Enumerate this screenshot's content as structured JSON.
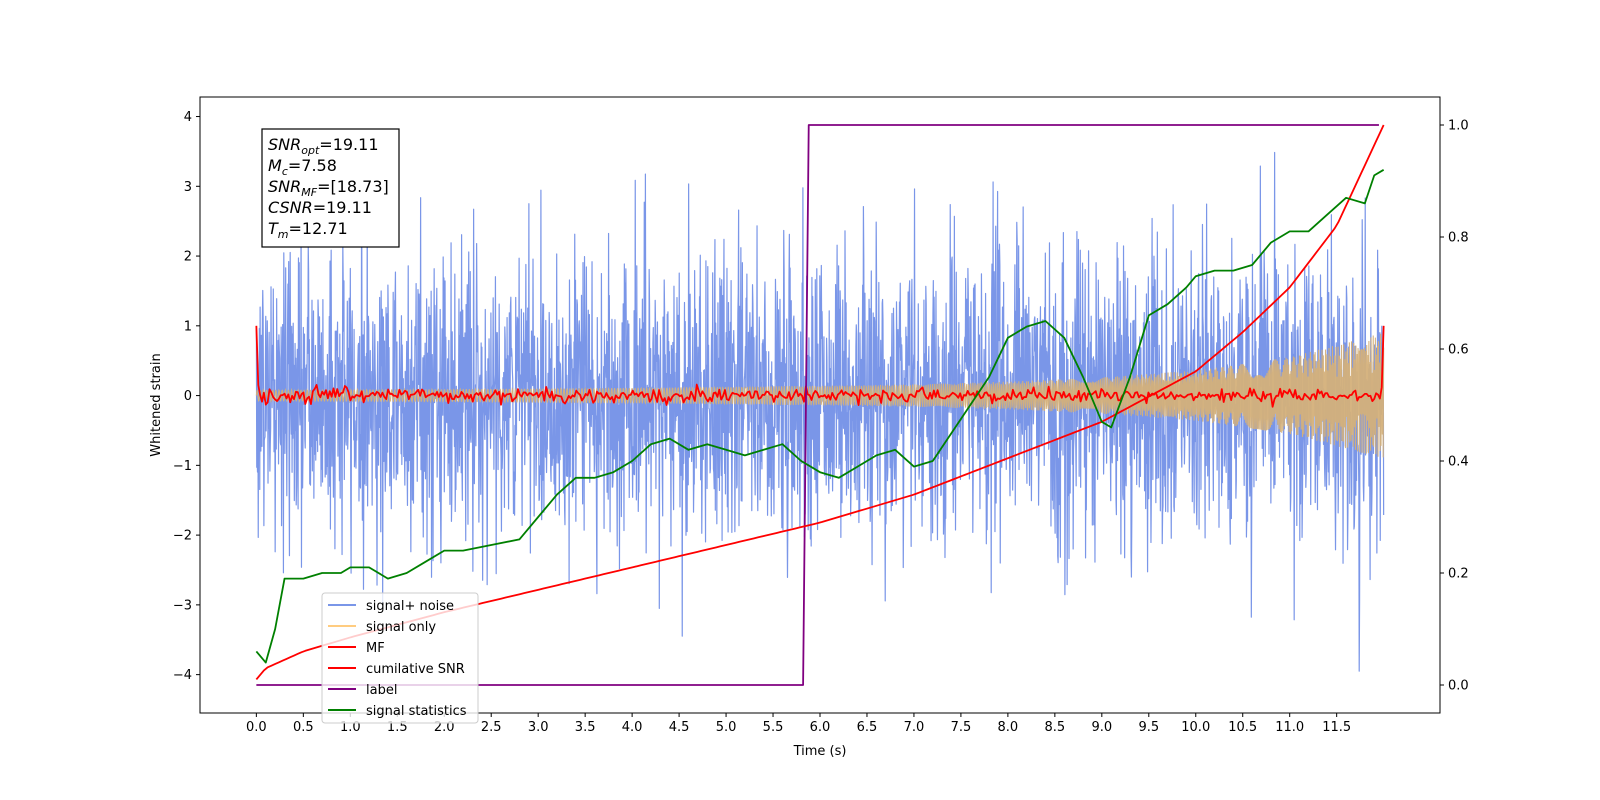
{
  "chart_data": {
    "type": "line",
    "xlabel": "Time (s)",
    "ylabel": "Whitened strain",
    "ylabel_right": "",
    "xlim": [
      -0.6,
      12.6
    ],
    "ylim": [
      -4.55,
      4.28
    ],
    "ylim_right": [
      -0.05,
      1.05
    ],
    "x_ticks": [
      "0.0",
      "0.5",
      "1.0",
      "1.5",
      "2.0",
      "2.5",
      "3.0",
      "3.5",
      "4.0",
      "4.5",
      "5.0",
      "5.5",
      "6.0",
      "6.5",
      "7.0",
      "7.5",
      "8.0",
      "8.5",
      "9.0",
      "9.5",
      "10.0",
      "10.5",
      "11.0",
      "11.5"
    ],
    "y_ticks": [
      "4",
      "3",
      "2",
      "1",
      "0",
      "−1",
      "−2",
      "−3",
      "−4"
    ],
    "y_ticks_right": [
      "1.0",
      "0.8",
      "0.6",
      "0.4",
      "0.2",
      "0.0"
    ],
    "duration_s": 12.0,
    "grid": false,
    "legend": {
      "placement": "lower-left",
      "entries": [
        {
          "label": "signal+ noise",
          "color": "#7a96e8"
        },
        {
          "label": "signal only",
          "color": "#ffcc80"
        },
        {
          "label": "MF",
          "color": "#ff0000"
        },
        {
          "label": "cumilative SNR",
          "color": "#ff0000"
        },
        {
          "label": "label",
          "color": "#800080"
        },
        {
          "label": "signal statistics",
          "color": "#008000"
        }
      ]
    },
    "annotation": {
      "lines": [
        {
          "base": "SNR",
          "sub": "opt",
          "rest": "=19.11"
        },
        {
          "base": "M",
          "sub": "c",
          "rest": "=7.58"
        },
        {
          "base": "SNR",
          "sub": "MF",
          "rest": "=[18.73]"
        },
        {
          "base": "CSNR",
          "sub": "",
          "rest": "=19.11"
        },
        {
          "base": "T",
          "sub": "m",
          "rest": "=12.71"
        }
      ]
    },
    "series": [
      {
        "name": "signal+ noise",
        "color": "#7a96e8",
        "x_range": [
          0.0,
          12.0
        ],
        "amplitude_std": 1.05,
        "max_abs": 3.95
      },
      {
        "name": "signal only",
        "color": "#d4b07a",
        "x_range": [
          0.0,
          12.0
        ],
        "envelope": {
          "x": [
            0,
            2,
            4,
            6,
            7,
            8,
            9,
            10,
            11,
            12
          ],
          "amp": [
            0.08,
            0.09,
            0.11,
            0.14,
            0.16,
            0.2,
            0.26,
            0.36,
            0.55,
            0.9
          ]
        }
      },
      {
        "name": "MF",
        "color": "#ff0000",
        "x_range": [
          0.0,
          12.0
        ],
        "start_value": 1.0,
        "end_value": 1.0,
        "noise_std": 0.05
      },
      {
        "name": "cumilative SNR",
        "color": "#ff0000",
        "axis": "right",
        "x": [
          0.0,
          0.1,
          0.5,
          1,
          2,
          3,
          4,
          5,
          6,
          7,
          8,
          9,
          10,
          10.5,
          11,
          11.5,
          12.0
        ],
        "y": [
          0.01,
          0.03,
          0.06,
          0.085,
          0.13,
          0.17,
          0.21,
          0.25,
          0.29,
          0.34,
          0.405,
          0.47,
          0.56,
          0.63,
          0.71,
          0.82,
          1.0
        ]
      },
      {
        "name": "label",
        "color": "#800080",
        "axis": "right",
        "x": [
          0.0,
          5.82,
          5.88,
          11.95
        ],
        "y": [
          0.0,
          0.0,
          1.0,
          1.0
        ]
      },
      {
        "name": "signal statistics",
        "color": "#008000",
        "axis": "right",
        "x": [
          0.0,
          0.1,
          0.2,
          0.3,
          0.5,
          0.7,
          0.9,
          1.0,
          1.2,
          1.4,
          1.6,
          1.8,
          2.0,
          2.2,
          2.5,
          2.8,
          3.0,
          3.2,
          3.4,
          3.6,
          3.8,
          4.0,
          4.2,
          4.4,
          4.6,
          4.8,
          5.0,
          5.2,
          5.4,
          5.6,
          5.8,
          6.0,
          6.2,
          6.4,
          6.6,
          6.8,
          7.0,
          7.2,
          7.4,
          7.6,
          7.8,
          8.0,
          8.2,
          8.4,
          8.6,
          8.8,
          9.0,
          9.1,
          9.3,
          9.5,
          9.7,
          9.9,
          10.0,
          10.2,
          10.4,
          10.6,
          10.8,
          11.0,
          11.2,
          11.4,
          11.6,
          11.8,
          11.9,
          12.0
        ],
        "y": [
          0.06,
          0.04,
          0.1,
          0.19,
          0.19,
          0.2,
          0.2,
          0.21,
          0.21,
          0.19,
          0.2,
          0.22,
          0.24,
          0.24,
          0.25,
          0.26,
          0.3,
          0.34,
          0.37,
          0.37,
          0.38,
          0.4,
          0.43,
          0.44,
          0.42,
          0.43,
          0.42,
          0.41,
          0.42,
          0.43,
          0.4,
          0.38,
          0.37,
          0.39,
          0.41,
          0.42,
          0.39,
          0.4,
          0.45,
          0.5,
          0.55,
          0.62,
          0.64,
          0.65,
          0.62,
          0.55,
          0.47,
          0.46,
          0.55,
          0.66,
          0.68,
          0.71,
          0.73,
          0.74,
          0.74,
          0.75,
          0.79,
          0.81,
          0.81,
          0.84,
          0.87,
          0.86,
          0.91,
          0.92
        ]
      }
    ]
  }
}
